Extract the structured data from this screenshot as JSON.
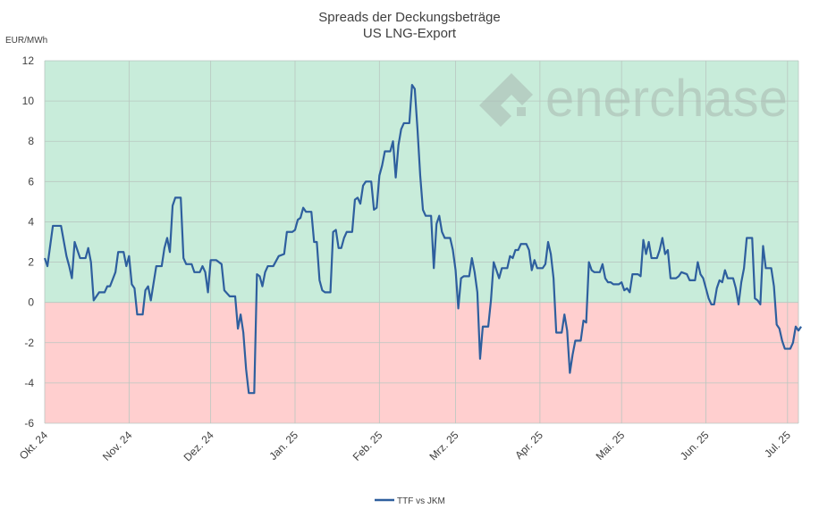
{
  "chart_data": {
    "type": "line",
    "title": "Spreads der Deckungsbeträge",
    "subtitle": "US LNG-Export",
    "ylabel": "EUR/MWh",
    "xlabel": "",
    "ylim": [
      -6,
      12
    ],
    "y_ticks": [
      12,
      10,
      8,
      6,
      4,
      2,
      0,
      -2,
      -4,
      -6
    ],
    "x_range": [
      "2024-10-01",
      "2025-07-05"
    ],
    "x_ticks": [
      {
        "label": "Okt. 24",
        "date": "2024-10-01"
      },
      {
        "label": "Nov. 24",
        "date": "2024-11-01"
      },
      {
        "label": "Dez. 24",
        "date": "2024-12-01"
      },
      {
        "label": "Jan. 25",
        "date": "2025-01-01"
      },
      {
        "label": "Feb. 25",
        "date": "2025-02-01"
      },
      {
        "label": "Mrz. 25",
        "date": "2025-03-01"
      },
      {
        "label": "Apr. 25",
        "date": "2025-04-01"
      },
      {
        "label": "Mai. 25",
        "date": "2025-05-01"
      },
      {
        "label": "Jun. 25",
        "date": "2025-06-01"
      },
      {
        "label": "Jul. 25",
        "date": "2025-07-01"
      }
    ],
    "grid": true,
    "legend_position": "bottom",
    "background_bands": [
      {
        "from": 0,
        "to": 12,
        "color": "#c8ecda"
      },
      {
        "from": -6,
        "to": 0,
        "color": "#ffcfcf"
      }
    ],
    "series": [
      {
        "name": "TTF vs JKM",
        "color": "#2e5f9e",
        "points": [
          [
            "2024-10-01",
            2.2
          ],
          [
            "2024-10-02",
            1.8
          ],
          [
            "2024-10-04",
            3.8
          ],
          [
            "2024-10-06",
            3.8
          ],
          [
            "2024-10-07",
            3.8
          ],
          [
            "2024-10-09",
            2.3
          ],
          [
            "2024-10-10",
            1.8
          ],
          [
            "2024-10-11",
            1.2
          ],
          [
            "2024-10-12",
            3.0
          ],
          [
            "2024-10-14",
            2.2
          ],
          [
            "2024-10-16",
            2.2
          ],
          [
            "2024-10-17",
            2.7
          ],
          [
            "2024-10-18",
            2.0
          ],
          [
            "2024-10-19",
            0.1
          ],
          [
            "2024-10-21",
            0.5
          ],
          [
            "2024-10-23",
            0.5
          ],
          [
            "2024-10-24",
            0.8
          ],
          [
            "2024-10-25",
            0.8
          ],
          [
            "2024-10-27",
            1.5
          ],
          [
            "2024-10-28",
            2.5
          ],
          [
            "2024-10-30",
            2.5
          ],
          [
            "2024-10-31",
            1.8
          ],
          [
            "2024-11-01",
            2.3
          ],
          [
            "2024-11-02",
            0.9
          ],
          [
            "2024-11-03",
            0.7
          ],
          [
            "2024-11-04",
            -0.6
          ],
          [
            "2024-11-06",
            -0.6
          ],
          [
            "2024-11-07",
            0.6
          ],
          [
            "2024-11-08",
            0.8
          ],
          [
            "2024-11-09",
            0.1
          ],
          [
            "2024-11-11",
            1.8
          ],
          [
            "2024-11-13",
            1.8
          ],
          [
            "2024-11-14",
            2.7
          ],
          [
            "2024-11-15",
            3.2
          ],
          [
            "2024-11-16",
            2.5
          ],
          [
            "2024-11-17",
            4.8
          ],
          [
            "2024-11-18",
            5.2
          ],
          [
            "2024-11-20",
            5.2
          ],
          [
            "2024-11-21",
            2.2
          ],
          [
            "2024-11-22",
            1.9
          ],
          [
            "2024-11-24",
            1.9
          ],
          [
            "2024-11-25",
            1.5
          ],
          [
            "2024-11-27",
            1.5
          ],
          [
            "2024-11-28",
            1.8
          ],
          [
            "2024-11-29",
            1.5
          ],
          [
            "2024-11-30",
            0.5
          ],
          [
            "2024-12-01",
            2.1
          ],
          [
            "2024-12-03",
            2.1
          ],
          [
            "2024-12-05",
            1.9
          ],
          [
            "2024-12-06",
            0.6
          ],
          [
            "2024-12-08",
            0.3
          ],
          [
            "2024-12-10",
            0.3
          ],
          [
            "2024-12-11",
            -1.3
          ],
          [
            "2024-12-12",
            -0.6
          ],
          [
            "2024-12-13",
            -1.5
          ],
          [
            "2024-12-14",
            -3.3
          ],
          [
            "2024-12-15",
            -4.5
          ],
          [
            "2024-12-17",
            -4.5
          ],
          [
            "2024-12-18",
            1.4
          ],
          [
            "2024-12-19",
            1.3
          ],
          [
            "2024-12-20",
            0.8
          ],
          [
            "2024-12-21",
            1.5
          ],
          [
            "2024-12-22",
            1.8
          ],
          [
            "2024-12-24",
            1.8
          ],
          [
            "2024-12-26",
            2.3
          ],
          [
            "2024-12-28",
            2.4
          ],
          [
            "2024-12-29",
            3.5
          ],
          [
            "2024-12-31",
            3.5
          ],
          [
            "2025-01-01",
            3.6
          ],
          [
            "2025-01-02",
            4.1
          ],
          [
            "2025-01-03",
            4.2
          ],
          [
            "2025-01-04",
            4.7
          ],
          [
            "2025-01-05",
            4.5
          ],
          [
            "2025-01-07",
            4.5
          ],
          [
            "2025-01-08",
            3.0
          ],
          [
            "2025-01-09",
            3.0
          ],
          [
            "2025-01-10",
            1.1
          ],
          [
            "2025-01-11",
            0.6
          ],
          [
            "2025-01-12",
            0.5
          ],
          [
            "2025-01-14",
            0.5
          ],
          [
            "2025-01-15",
            3.5
          ],
          [
            "2025-01-16",
            3.6
          ],
          [
            "2025-01-17",
            2.7
          ],
          [
            "2025-01-18",
            2.7
          ],
          [
            "2025-01-19",
            3.2
          ],
          [
            "2025-01-20",
            3.5
          ],
          [
            "2025-01-22",
            3.5
          ],
          [
            "2025-01-23",
            5.1
          ],
          [
            "2025-01-24",
            5.2
          ],
          [
            "2025-01-25",
            4.9
          ],
          [
            "2025-01-26",
            5.8
          ],
          [
            "2025-01-27",
            6.0
          ],
          [
            "2025-01-29",
            6.0
          ],
          [
            "2025-01-30",
            4.6
          ],
          [
            "2025-01-31",
            4.7
          ],
          [
            "2025-02-01",
            6.3
          ],
          [
            "2025-02-02",
            6.8
          ],
          [
            "2025-02-03",
            7.5
          ],
          [
            "2025-02-05",
            7.5
          ],
          [
            "2025-02-06",
            8.0
          ],
          [
            "2025-02-07",
            6.2
          ],
          [
            "2025-02-08",
            7.8
          ],
          [
            "2025-02-09",
            8.6
          ],
          [
            "2025-02-10",
            8.9
          ],
          [
            "2025-02-12",
            8.9
          ],
          [
            "2025-02-13",
            10.8
          ],
          [
            "2025-02-14",
            10.6
          ],
          [
            "2025-02-15",
            8.6
          ],
          [
            "2025-02-16",
            6.3
          ],
          [
            "2025-02-17",
            4.6
          ],
          [
            "2025-02-18",
            4.3
          ],
          [
            "2025-02-20",
            4.3
          ],
          [
            "2025-02-21",
            1.7
          ],
          [
            "2025-02-22",
            3.9
          ],
          [
            "2025-02-23",
            4.3
          ],
          [
            "2025-02-24",
            3.5
          ],
          [
            "2025-02-25",
            3.2
          ],
          [
            "2025-02-27",
            3.2
          ],
          [
            "2025-02-28",
            2.6
          ],
          [
            "2025-03-01",
            1.6
          ],
          [
            "2025-03-02",
            -0.3
          ],
          [
            "2025-03-03",
            1.2
          ],
          [
            "2025-03-04",
            1.3
          ],
          [
            "2025-03-06",
            1.3
          ],
          [
            "2025-03-07",
            2.2
          ],
          [
            "2025-03-08",
            1.5
          ],
          [
            "2025-03-09",
            0.5
          ],
          [
            "2025-03-10",
            -2.8
          ],
          [
            "2025-03-11",
            -1.2
          ],
          [
            "2025-03-13",
            -1.2
          ],
          [
            "2025-03-14",
            0.1
          ],
          [
            "2025-03-15",
            2.0
          ],
          [
            "2025-03-16",
            1.6
          ],
          [
            "2025-03-17",
            1.2
          ],
          [
            "2025-03-18",
            1.7
          ],
          [
            "2025-03-20",
            1.7
          ],
          [
            "2025-03-21",
            2.3
          ],
          [
            "2025-03-22",
            2.2
          ],
          [
            "2025-03-23",
            2.6
          ],
          [
            "2025-03-24",
            2.6
          ],
          [
            "2025-03-25",
            2.9
          ],
          [
            "2025-03-27",
            2.9
          ],
          [
            "2025-03-28",
            2.6
          ],
          [
            "2025-03-29",
            1.6
          ],
          [
            "2025-03-30",
            2.1
          ],
          [
            "2025-03-31",
            1.7
          ],
          [
            "2025-04-02",
            1.7
          ],
          [
            "2025-04-03",
            1.9
          ],
          [
            "2025-04-04",
            3.0
          ],
          [
            "2025-04-05",
            2.4
          ],
          [
            "2025-04-06",
            1.2
          ],
          [
            "2025-04-07",
            -1.5
          ],
          [
            "2025-04-09",
            -1.5
          ],
          [
            "2025-04-10",
            -0.6
          ],
          [
            "2025-04-11",
            -1.4
          ],
          [
            "2025-04-12",
            -3.5
          ],
          [
            "2025-04-13",
            -2.6
          ],
          [
            "2025-04-14",
            -1.9
          ],
          [
            "2025-04-16",
            -1.9
          ],
          [
            "2025-04-17",
            -0.9
          ],
          [
            "2025-04-18",
            -1.0
          ],
          [
            "2025-04-19",
            2.0
          ],
          [
            "2025-04-20",
            1.6
          ],
          [
            "2025-04-21",
            1.5
          ],
          [
            "2025-04-23",
            1.5
          ],
          [
            "2025-04-24",
            1.9
          ],
          [
            "2025-04-25",
            1.2
          ],
          [
            "2025-04-26",
            1.0
          ],
          [
            "2025-04-27",
            1.0
          ],
          [
            "2025-04-28",
            0.9
          ],
          [
            "2025-04-30",
            0.9
          ],
          [
            "2025-05-01",
            1.0
          ],
          [
            "2025-05-02",
            0.6
          ],
          [
            "2025-05-03",
            0.7
          ],
          [
            "2025-05-04",
            0.5
          ],
          [
            "2025-05-05",
            1.4
          ],
          [
            "2025-05-07",
            1.4
          ],
          [
            "2025-05-08",
            1.3
          ],
          [
            "2025-05-09",
            3.1
          ],
          [
            "2025-05-10",
            2.4
          ],
          [
            "2025-05-11",
            3.0
          ],
          [
            "2025-05-12",
            2.2
          ],
          [
            "2025-05-14",
            2.2
          ],
          [
            "2025-05-15",
            2.6
          ],
          [
            "2025-05-16",
            3.2
          ],
          [
            "2025-05-17",
            2.4
          ],
          [
            "2025-05-18",
            2.6
          ],
          [
            "2025-05-19",
            1.2
          ],
          [
            "2025-05-21",
            1.2
          ],
          [
            "2025-05-22",
            1.3
          ],
          [
            "2025-05-23",
            1.5
          ],
          [
            "2025-05-25",
            1.4
          ],
          [
            "2025-05-26",
            1.1
          ],
          [
            "2025-05-28",
            1.1
          ],
          [
            "2025-05-29",
            2.0
          ],
          [
            "2025-05-30",
            1.4
          ],
          [
            "2025-05-31",
            1.2
          ],
          [
            "2025-06-01",
            0.7
          ],
          [
            "2025-06-02",
            0.2
          ],
          [
            "2025-06-03",
            -0.1
          ],
          [
            "2025-06-04",
            -0.1
          ],
          [
            "2025-06-05",
            0.7
          ],
          [
            "2025-06-06",
            1.1
          ],
          [
            "2025-06-07",
            1.0
          ],
          [
            "2025-06-08",
            1.6
          ],
          [
            "2025-06-09",
            1.2
          ],
          [
            "2025-06-11",
            1.2
          ],
          [
            "2025-06-12",
            0.7
          ],
          [
            "2025-06-13",
            -0.1
          ],
          [
            "2025-06-14",
            1.0
          ],
          [
            "2025-06-15",
            1.7
          ],
          [
            "2025-06-16",
            3.2
          ],
          [
            "2025-06-18",
            3.2
          ],
          [
            "2025-06-19",
            0.2
          ],
          [
            "2025-06-20",
            0.1
          ],
          [
            "2025-06-21",
            -0.1
          ],
          [
            "2025-06-22",
            2.8
          ],
          [
            "2025-06-23",
            1.7
          ],
          [
            "2025-06-25",
            1.7
          ],
          [
            "2025-06-26",
            0.8
          ],
          [
            "2025-06-27",
            -1.1
          ],
          [
            "2025-06-28",
            -1.3
          ],
          [
            "2025-06-29",
            -1.9
          ],
          [
            "2025-06-30",
            -2.3
          ],
          [
            "2025-07-02",
            -2.3
          ],
          [
            "2025-07-03",
            -2.0
          ],
          [
            "2025-07-04",
            -1.2
          ],
          [
            "2025-07-05",
            -1.4
          ],
          [
            "2025-07-06",
            -1.2
          ]
        ]
      }
    ]
  },
  "watermark": {
    "text": "enerchase",
    "color": "#a8b8b0"
  },
  "colors": {
    "grid": "#b9c7c0",
    "axis_text": "#404040",
    "line": "#2e5f9e",
    "positive_band": "#c8ecda",
    "negative_band": "#ffcfcf"
  }
}
